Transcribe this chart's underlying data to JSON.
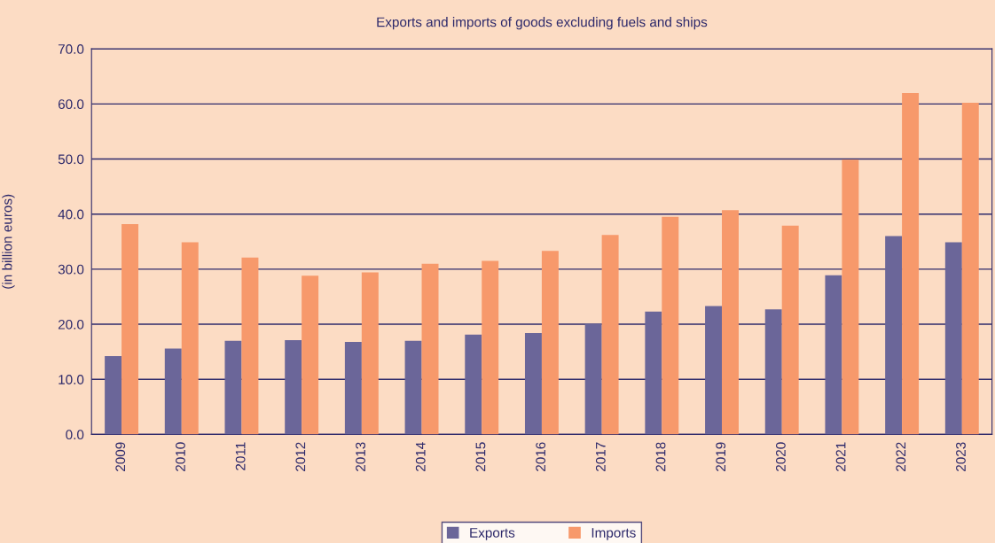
{
  "chart_data": {
    "type": "bar",
    "title": "Exports and imports of goods excluding fuels and ships",
    "ylabel": "(in billion euros)",
    "categories": [
      "2009",
      "2010",
      "2011",
      "2012",
      "2013",
      "2014",
      "2015",
      "2016",
      "2017",
      "2018",
      "2019",
      "2020",
      "2021",
      "2022",
      "2023"
    ],
    "series": [
      {
        "name": "Exports",
        "color": "#6b6699",
        "values": [
          14.2,
          15.6,
          17.0,
          17.1,
          16.8,
          17.0,
          18.1,
          18.4,
          20.1,
          22.3,
          23.3,
          22.7,
          28.9,
          36.0,
          34.9
        ]
      },
      {
        "name": "Imports",
        "color": "#f7996b",
        "values": [
          38.2,
          34.9,
          32.1,
          28.8,
          29.4,
          31.0,
          31.5,
          33.3,
          36.2,
          39.5,
          40.7,
          37.9,
          49.9,
          62.0,
          60.2
        ]
      }
    ],
    "ylim": [
      0,
      70
    ],
    "yticks": [
      {
        "value": 0,
        "label": "0.0"
      },
      {
        "value": 10,
        "label": "10.0"
      },
      {
        "value": 20,
        "label": "20.0"
      },
      {
        "value": 30,
        "label": "30.0"
      },
      {
        "value": 40,
        "label": "40.0"
      },
      {
        "value": 50,
        "label": "50.0"
      },
      {
        "value": 60,
        "label": "60.0"
      },
      {
        "value": 70,
        "label": "70.0"
      }
    ],
    "grid": "y",
    "legend": "bottom"
  }
}
